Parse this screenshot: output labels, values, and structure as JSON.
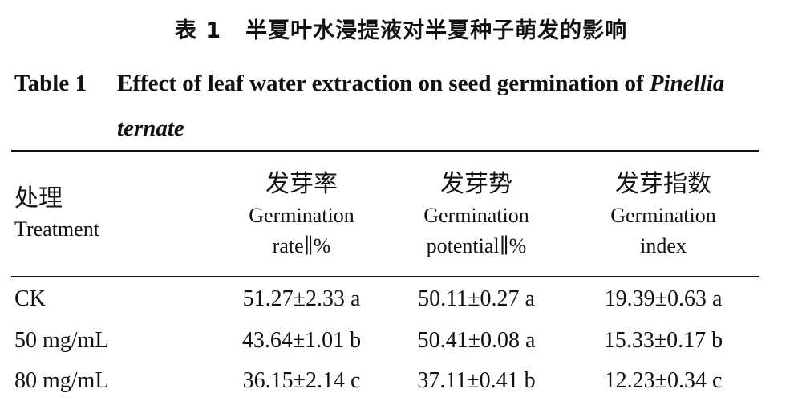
{
  "title_cn": {
    "label": "表 1",
    "text": "半夏叶水浸提液对半夏种子萌发的影响"
  },
  "title_en": {
    "label": "Table 1",
    "text": "Effect of leaf water extraction on seed germination of ",
    "italic": "Pinellia",
    "line2": "ternate"
  },
  "table": {
    "headers": [
      {
        "zh": "处理",
        "en1": "Treatment",
        "en2": ""
      },
      {
        "zh": "发芽率",
        "en1": "Germination",
        "en2": "rate∥%"
      },
      {
        "zh": "发芽势",
        "en1": "Germination",
        "en2": "potential∥%"
      },
      {
        "zh": "发芽指数",
        "en1": "Germination",
        "en2": "index"
      }
    ],
    "rows": [
      [
        "CK",
        "51.27±2.33 a",
        "50.11±0.27 a",
        "19.39±0.63 a"
      ],
      [
        "50 mg/mL",
        "43.64±1.01 b",
        "50.41±0.08 a",
        "15.33±0.17 b"
      ],
      [
        "80 mg/mL",
        "36.15±2.14 c",
        "37.11±0.41 b",
        "12.23±0.34 c"
      ]
    ]
  }
}
